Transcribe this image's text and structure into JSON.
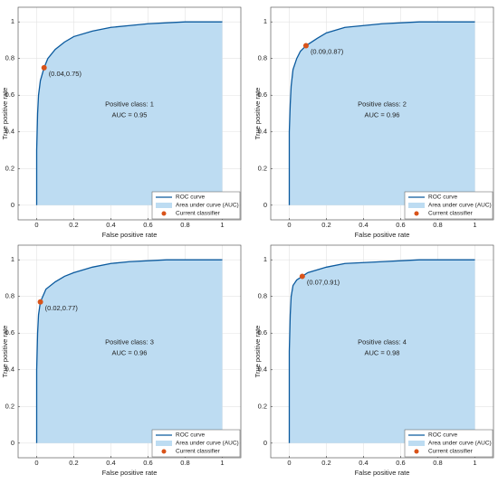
{
  "chart_data": [
    {
      "type": "roc",
      "annotations": [
        "Positive class: 1",
        "AUC = 0.95"
      ],
      "xlabel": "False positive rate",
      "ylabel": "True positive rate",
      "xlim": [
        -0.1,
        1.1
      ],
      "ylim": [
        -0.08,
        1.08
      ],
      "xticks": [
        0,
        0.2,
        0.4,
        0.6,
        0.8,
        1
      ],
      "yticks": [
        0,
        0.2,
        0.4,
        0.6,
        0.8,
        1
      ],
      "grid": true,
      "legend": "lower right",
      "series": [
        {
          "name": "ROC curve",
          "color": "#0b5a9e",
          "fill_name": "Area under curve (AUC)",
          "fill_color": "#bddcf2",
          "x": [
            0,
            0,
            0.005,
            0.01,
            0.02,
            0.04,
            0.06,
            0.1,
            0.15,
            0.2,
            0.3,
            0.4,
            0.5,
            0.6,
            0.8,
            1
          ],
          "values": [
            0,
            0.3,
            0.5,
            0.6,
            0.68,
            0.75,
            0.8,
            0.85,
            0.89,
            0.92,
            0.95,
            0.97,
            0.98,
            0.99,
            1,
            1
          ]
        }
      ],
      "point": {
        "name": "Current classifier",
        "color": "#d95319",
        "x": 0.04,
        "y": 0.75,
        "label": "(0.04,0.75)"
      }
    },
    {
      "type": "roc",
      "annotations": [
        "Positive class: 2",
        "AUC = 0.96"
      ],
      "xlabel": "False positive rate",
      "ylabel": "True positive rate",
      "xlim": [
        -0.1,
        1.1
      ],
      "ylim": [
        -0.08,
        1.08
      ],
      "xticks": [
        0,
        0.2,
        0.4,
        0.6,
        0.8,
        1
      ],
      "yticks": [
        0,
        0.2,
        0.4,
        0.6,
        0.8,
        1
      ],
      "grid": true,
      "legend": "lower right",
      "series": [
        {
          "name": "ROC curve",
          "color": "#0b5a9e",
          "fill_name": "Area under curve (AUC)",
          "fill_color": "#bddcf2",
          "x": [
            0,
            0,
            0.005,
            0.01,
            0.02,
            0.04,
            0.06,
            0.09,
            0.15,
            0.2,
            0.3,
            0.4,
            0.5,
            0.7,
            1
          ],
          "values": [
            0,
            0.4,
            0.55,
            0.65,
            0.74,
            0.8,
            0.84,
            0.87,
            0.91,
            0.94,
            0.97,
            0.98,
            0.99,
            1,
            1
          ]
        }
      ],
      "point": {
        "name": "Current classifier",
        "color": "#d95319",
        "x": 0.09,
        "y": 0.87,
        "label": "(0.09,0.87)"
      }
    },
    {
      "type": "roc",
      "annotations": [
        "Positive class: 3",
        "AUC = 0.96"
      ],
      "xlabel": "False positive rate",
      "ylabel": "True positive rate",
      "xlim": [
        -0.1,
        1.1
      ],
      "ylim": [
        -0.08,
        1.08
      ],
      "xticks": [
        0,
        0.2,
        0.4,
        0.6,
        0.8,
        1
      ],
      "yticks": [
        0,
        0.2,
        0.4,
        0.6,
        0.8,
        1
      ],
      "grid": true,
      "legend": "lower right",
      "series": [
        {
          "name": "ROC curve",
          "color": "#0b5a9e",
          "fill_name": "Area under curve (AUC)",
          "fill_color": "#bddcf2",
          "x": [
            0,
            0,
            0.005,
            0.01,
            0.02,
            0.05,
            0.1,
            0.15,
            0.2,
            0.3,
            0.4,
            0.5,
            0.7,
            1
          ],
          "values": [
            0,
            0.4,
            0.6,
            0.7,
            0.77,
            0.84,
            0.88,
            0.91,
            0.93,
            0.96,
            0.98,
            0.99,
            1,
            1
          ]
        }
      ],
      "point": {
        "name": "Current classifier",
        "color": "#d95319",
        "x": 0.02,
        "y": 0.77,
        "label": "(0.02,0.77)"
      }
    },
    {
      "type": "roc",
      "annotations": [
        "Positive class: 4",
        "AUC = 0.98"
      ],
      "xlabel": "False positive rate",
      "ylabel": "True positive rate",
      "xlim": [
        -0.1,
        1.1
      ],
      "ylim": [
        -0.08,
        1.08
      ],
      "xticks": [
        0,
        0.2,
        0.4,
        0.6,
        0.8,
        1
      ],
      "yticks": [
        0,
        0.2,
        0.4,
        0.6,
        0.8,
        1
      ],
      "grid": true,
      "legend": "lower right",
      "series": [
        {
          "name": "ROC curve",
          "color": "#0b5a9e",
          "fill_name": "Area under curve (AUC)",
          "fill_color": "#bddcf2",
          "x": [
            0,
            0,
            0.005,
            0.01,
            0.02,
            0.04,
            0.07,
            0.1,
            0.2,
            0.3,
            0.5,
            0.7,
            1
          ],
          "values": [
            0,
            0.5,
            0.7,
            0.8,
            0.86,
            0.89,
            0.91,
            0.93,
            0.96,
            0.98,
            0.99,
            1,
            1
          ]
        }
      ],
      "point": {
        "name": "Current classifier",
        "color": "#d95319",
        "x": 0.07,
        "y": 0.91,
        "label": "(0.07,0.91)"
      }
    }
  ]
}
